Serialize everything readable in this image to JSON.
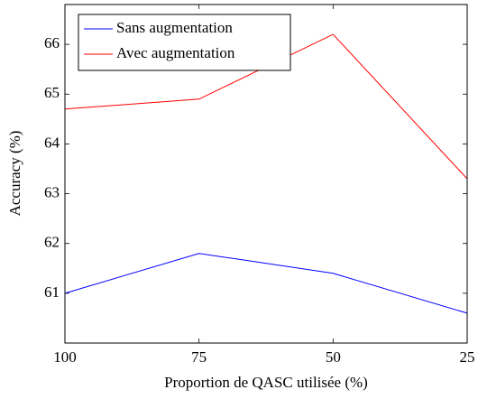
{
  "chart_data": {
    "type": "line",
    "xlabel": "Proportion de QASC utilisée (%)",
    "ylabel": "Accuracy (%)",
    "x": [
      100,
      75,
      50,
      25
    ],
    "series": [
      {
        "name": "Sans augmentation",
        "color": "#0000ff",
        "values": [
          61.0,
          61.8,
          61.4,
          60.6
        ]
      },
      {
        "name": "Avec augmentation",
        "color": "#ff0000",
        "values": [
          64.7,
          64.9,
          66.2,
          63.3
        ]
      }
    ],
    "xlim": [
      100,
      25
    ],
    "xticks": [
      100,
      75,
      50,
      25
    ],
    "ylim": [
      60.0,
      66.8
    ],
    "yticks": [
      61,
      62,
      63,
      64,
      65,
      66
    ],
    "grid": false,
    "legend": "upper left"
  }
}
